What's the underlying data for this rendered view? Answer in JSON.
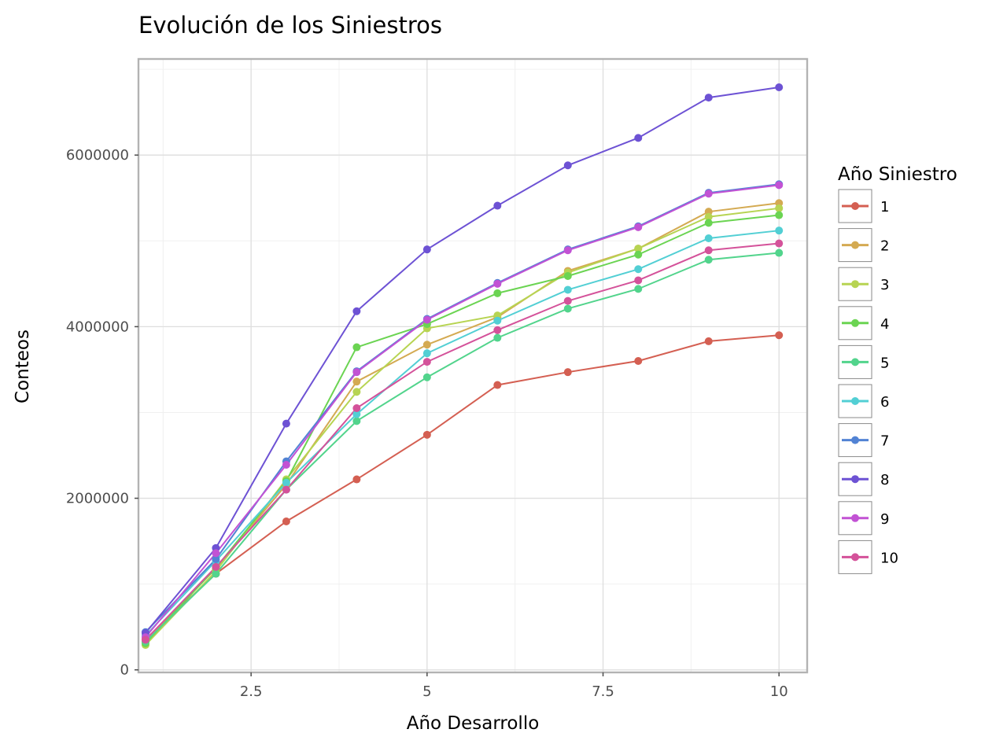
{
  "chart_data": {
    "type": "line",
    "title": "Evolución de los Siniestros",
    "xlabel": "Año Desarrollo",
    "ylabel": "Conteos",
    "xlim": [
      0.9,
      10.4
    ],
    "ylim": [
      -30000,
      7120000
    ],
    "x_ticks": [
      2.5,
      5,
      7.5,
      10
    ],
    "x_tick_labels": [
      "2.5",
      "5",
      "7.5",
      "10"
    ],
    "y_ticks": [
      0,
      2000000,
      4000000,
      6000000
    ],
    "y_tick_labels": [
      "0",
      "2000000",
      "4000000",
      "6000000"
    ],
    "grid": true,
    "legend_title": "Año Siniestro",
    "legend_position": "right",
    "x": [
      1,
      2,
      3,
      4,
      5,
      6,
      7,
      8,
      9,
      10
    ],
    "series": [
      {
        "name": "1",
        "color": "#d45f52",
        "values": [
          357000,
          1120000,
          1730000,
          2220000,
          2740000,
          3320000,
          3470000,
          3600000,
          3830000,
          3900000
        ]
      },
      {
        "name": "2",
        "color": "#d4aa52",
        "values": [
          350000,
          1180000,
          2160000,
          3360000,
          3790000,
          4110000,
          4650000,
          4910000,
          5340000,
          5440000
        ]
      },
      {
        "name": "3",
        "color": "#b7d452",
        "values": [
          290000,
          1150000,
          2220000,
          3240000,
          3980000,
          4130000,
          4630000,
          4910000,
          5280000,
          5380000
        ]
      },
      {
        "name": "4",
        "color": "#6bd452",
        "values": [
          310000,
          1190000,
          2200000,
          3760000,
          4030000,
          4390000,
          4590000,
          4840000,
          5210000,
          5300000
        ]
      },
      {
        "name": "5",
        "color": "#52d48c",
        "values": [
          330000,
          1120000,
          2100000,
          2900000,
          3410000,
          3870000,
          4210000,
          4440000,
          4780000,
          4860000
        ]
      },
      {
        "name": "6",
        "color": "#52cfd4",
        "values": [
          400000,
          1270000,
          2180000,
          2980000,
          3690000,
          4070000,
          4430000,
          4670000,
          5030000,
          5120000
        ]
      },
      {
        "name": "7",
        "color": "#5283d4",
        "values": [
          440000,
          1290000,
          2430000,
          3480000,
          4090000,
          4510000,
          4900000,
          5170000,
          5560000,
          5660000
        ]
      },
      {
        "name": "8",
        "color": "#6d52d4",
        "values": [
          430000,
          1420000,
          2870000,
          4180000,
          4900000,
          5410000,
          5880000,
          6200000,
          6670000,
          6790000
        ]
      },
      {
        "name": "9",
        "color": "#c252d4",
        "values": [
          380000,
          1360000,
          2390000,
          3470000,
          4080000,
          4500000,
          4890000,
          5160000,
          5550000,
          5650000
        ]
      },
      {
        "name": "10",
        "color": "#d4529a",
        "values": [
          350000,
          1200000,
          2100000,
          3050000,
          3590000,
          3960000,
          4300000,
          4540000,
          4890000,
          4970000
        ]
      }
    ]
  }
}
